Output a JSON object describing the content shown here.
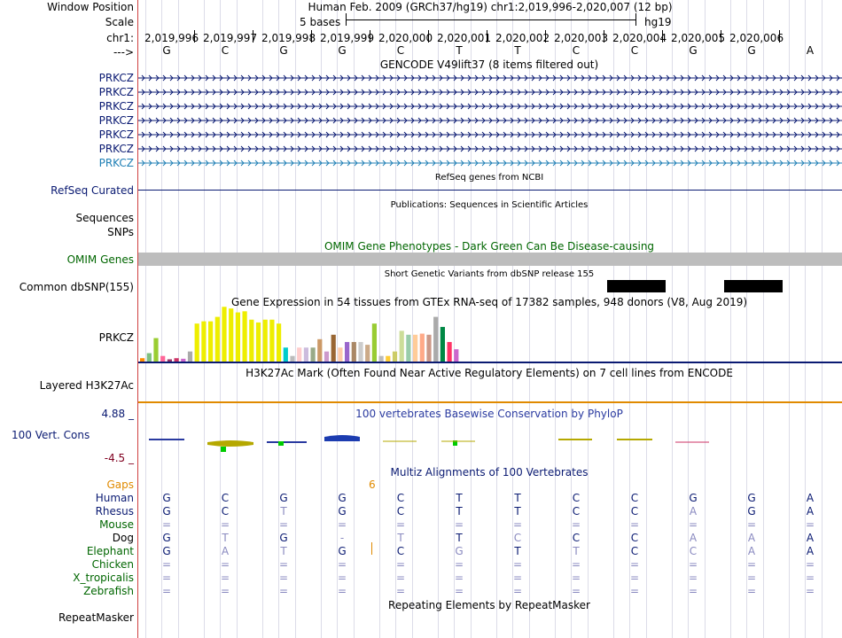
{
  "colors": {
    "navy": "#0a1a72",
    "blue_cyan": "#1f7fb5",
    "omim_green": "#006600",
    "orange": "#e08a00",
    "maroon": "#800020",
    "conservation_blue": "#2a3aa0",
    "gray_bar": "#bdbdbd",
    "vertical_grid": "#dcdce8",
    "margin_red": "#d04040"
  },
  "header": {
    "window_position_label": "Window Position",
    "window_position_value": "Human Feb. 2009 (GRCh37/hg19)   chr1:2,019,996-2,020,007 (12 bp)",
    "scale_label": "Scale",
    "scale_text": "5 bases",
    "scale_assembly": "hg19",
    "chrom_label": "chr1:",
    "positions": [
      "2,019,996",
      "2,019,997",
      "2,019,998",
      "2,019,999",
      "2,020,000",
      "2,020,001",
      "2,020,002",
      "2,020,003",
      "2,020,004",
      "2,020,005",
      "2,020,006"
    ],
    "strand_label": "--->",
    "bases": [
      "G",
      "C",
      "G",
      "G",
      "C",
      "T",
      "T",
      "C",
      "C",
      "G",
      "G",
      "A"
    ]
  },
  "gencode": {
    "title": "GENCODE V49lift37 (8 items filtered out)",
    "items": [
      "PRKCZ",
      "PRKCZ",
      "PRKCZ",
      "PRKCZ",
      "PRKCZ",
      "PRKCZ",
      "PRKCZ"
    ]
  },
  "refseq": {
    "label": "RefSeq Curated",
    "title": "RefSeq genes from NCBI"
  },
  "publications": {
    "title": "Publications: Sequences in Scientific Articles",
    "labels": [
      "Sequences",
      "SNPs"
    ]
  },
  "omim": {
    "title": "OMIM Gene Phenotypes - Dark Green Can Be Disease-causing",
    "label": "OMIM Genes"
  },
  "dbsnp": {
    "title": "Short Genetic Variants from dbSNP release 155",
    "label": "Common dbSNP(155)"
  },
  "gtex": {
    "title": "Gene Expression in 54 tissues from GTEx RNA-seq of 17382 samples, 948 donors (V8, Aug 2019)",
    "label": "PRKCZ",
    "bars": [
      {
        "value": 6,
        "color": "#ff8c00"
      },
      {
        "value": 15,
        "color": "#7fc07f"
      },
      {
        "value": 42,
        "color": "#9acd32"
      },
      {
        "value": 10,
        "color": "#ff6699"
      },
      {
        "value": 4,
        "color": "#993366"
      },
      {
        "value": 6,
        "color": "#cc3366"
      },
      {
        "value": 5,
        "color": "#cc66cc"
      },
      {
        "value": 18,
        "color": "#aaaaaa"
      },
      {
        "value": 68,
        "color": "#eeee00"
      },
      {
        "value": 72,
        "color": "#eeee00"
      },
      {
        "value": 72,
        "color": "#eeee00"
      },
      {
        "value": 80,
        "color": "#eeee00"
      },
      {
        "value": 98,
        "color": "#eeee00"
      },
      {
        "value": 95,
        "color": "#eeee00"
      },
      {
        "value": 88,
        "color": "#eeee00"
      },
      {
        "value": 90,
        "color": "#eeee00"
      },
      {
        "value": 75,
        "color": "#eeee00"
      },
      {
        "value": 70,
        "color": "#eeee00"
      },
      {
        "value": 75,
        "color": "#eeee00"
      },
      {
        "value": 75,
        "color": "#eeee00"
      },
      {
        "value": 68,
        "color": "#eeee00"
      },
      {
        "value": 25,
        "color": "#00cccc"
      },
      {
        "value": 10,
        "color": "#bbbbbb"
      },
      {
        "value": 25,
        "color": "#ffcccc"
      },
      {
        "value": 25,
        "color": "#ccbbdd"
      },
      {
        "value": 25,
        "color": "#99aa88"
      },
      {
        "value": 40,
        "color": "#cc9966"
      },
      {
        "value": 18,
        "color": "#cc99cc"
      },
      {
        "value": 48,
        "color": "#996633"
      },
      {
        "value": 25,
        "color": "#ffccaa"
      },
      {
        "value": 35,
        "color": "#9966cc"
      },
      {
        "value": 35,
        "color": "#aa8866"
      },
      {
        "value": 35,
        "color": "#cccccc"
      },
      {
        "value": 30,
        "color": "#ccaa88"
      },
      {
        "value": 68,
        "color": "#99cc33"
      },
      {
        "value": 10,
        "color": "#bbbbbb"
      },
      {
        "value": 10,
        "color": "#ffcc33"
      },
      {
        "value": 18,
        "color": "#cccc66"
      },
      {
        "value": 55,
        "color": "#ccdd99"
      },
      {
        "value": 48,
        "color": "#99ccaa"
      },
      {
        "value": 48,
        "color": "#ffcc99"
      },
      {
        "value": 50,
        "color": "#ffaa88"
      },
      {
        "value": 48,
        "color": "#cc9988"
      },
      {
        "value": 80,
        "color": "#aaaaaa"
      },
      {
        "value": 62,
        "color": "#008844"
      },
      {
        "value": 35,
        "color": "#ff3366"
      },
      {
        "value": 22,
        "color": "#cc66cc"
      }
    ]
  },
  "h3k27ac": {
    "title": "H3K27Ac Mark (Often Found Near Active Regulatory Elements) on 7 cell lines from ENCODE",
    "label": "Layered H3K27Ac"
  },
  "conservation": {
    "title": "100 vertebrates Basewise Conservation by PhyloP",
    "label": "100 Vert. Cons",
    "max_label": "4.88 _",
    "min_label": "-4.5 _"
  },
  "multiz": {
    "title": "Multiz Alignments of 100 Vertebrates",
    "gaps_label": "Gaps",
    "gaps_value": "6",
    "species": [
      {
        "name": "Human",
        "color": "#0a1a72",
        "bases": [
          "G",
          "C",
          "G",
          "G",
          "C",
          "T",
          "T",
          "C",
          "C",
          "G",
          "G",
          "A"
        ]
      },
      {
        "name": "Rhesus",
        "color": "#0a1a72",
        "bases": [
          "G",
          "C",
          "T",
          "G",
          "C",
          "T",
          "T",
          "C",
          "C",
          "A",
          "G",
          "A"
        ]
      },
      {
        "name": "Mouse",
        "color": "#006600",
        "bases": [
          "=",
          "=",
          "=",
          "=",
          "=",
          "=",
          "=",
          "=",
          "=",
          "=",
          "=",
          "="
        ]
      },
      {
        "name": "Dog",
        "color": "#000000",
        "bases": [
          "G",
          "T",
          "G",
          "-",
          "T",
          "T",
          "C",
          "C",
          "C",
          "A",
          "A",
          "A"
        ]
      },
      {
        "name": "Elephant",
        "color": "#006600",
        "bases": [
          "G",
          "A",
          "T",
          "G",
          "C",
          "G",
          "T",
          "T",
          "C",
          "C",
          "A",
          "A"
        ]
      },
      {
        "name": "Chicken",
        "color": "#006600",
        "bases": [
          "=",
          "=",
          "=",
          "=",
          "=",
          "=",
          "=",
          "=",
          "=",
          "=",
          "=",
          "="
        ]
      },
      {
        "name": "X_tropicalis",
        "color": "#006600",
        "bases": [
          "=",
          "=",
          "=",
          "=",
          "=",
          "=",
          "=",
          "=",
          "=",
          "=",
          "=",
          "="
        ]
      },
      {
        "name": "Zebrafish",
        "color": "#006600",
        "bases": [
          "=",
          "=",
          "=",
          "=",
          "=",
          "=",
          "=",
          "=",
          "=",
          "=",
          "=",
          "="
        ]
      }
    ]
  },
  "repeatmasker": {
    "title": "Repeating Elements by RepeatMasker",
    "label": "RepeatMasker"
  }
}
